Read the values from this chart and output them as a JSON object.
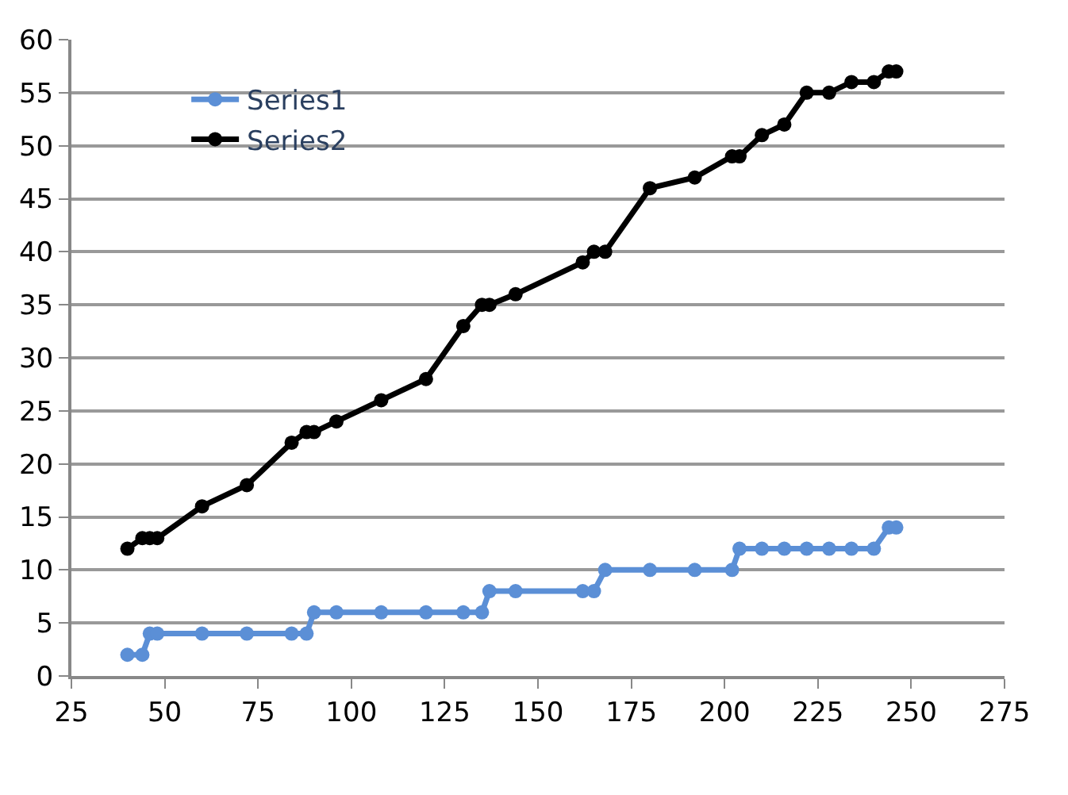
{
  "chart_data": {
    "type": "line",
    "x": [
      40,
      44,
      46,
      48,
      60,
      72,
      84,
      88,
      90,
      96,
      108,
      120,
      130,
      135,
      137,
      144,
      162,
      165,
      168,
      180,
      192,
      202,
      204,
      210,
      216,
      222,
      228,
      234,
      240,
      244,
      246
    ],
    "series": [
      {
        "name": "Series1",
        "color": "#5b8fd6",
        "values": [
          2,
          2,
          4,
          4,
          4,
          4,
          4,
          4,
          6,
          6,
          6,
          6,
          6,
          6,
          8,
          8,
          8,
          8,
          10,
          10,
          10,
          10,
          12,
          12,
          12,
          12,
          12,
          12,
          12,
          14,
          14
        ]
      },
      {
        "name": "Series2",
        "color": "#000000",
        "values": [
          12,
          13,
          13,
          13,
          16,
          18,
          22,
          23,
          23,
          24,
          26,
          28,
          33,
          35,
          35,
          36,
          39,
          40,
          40,
          46,
          47,
          49,
          49,
          51,
          52,
          55,
          55,
          56,
          56,
          57,
          57
        ]
      }
    ],
    "xlim": [
      25,
      275
    ],
    "xticks": [
      25,
      50,
      75,
      100,
      125,
      150,
      175,
      200,
      225,
      250,
      275
    ],
    "ylim": [
      0,
      60
    ],
    "yticks": [
      0,
      5,
      10,
      15,
      20,
      25,
      30,
      35,
      40,
      45,
      50,
      55,
      60
    ],
    "grid": "y",
    "legend": "top left",
    "marker": "circle",
    "line_style": "solid"
  }
}
